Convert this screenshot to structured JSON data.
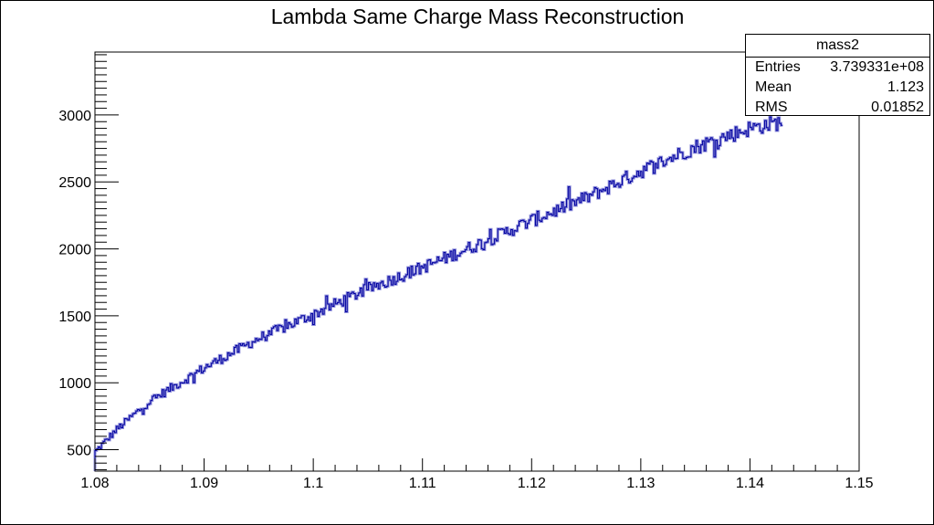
{
  "chart_data": {
    "type": "line",
    "title": "Lambda Same Charge Mass Reconstruction",
    "xlabel": "",
    "ylabel": "",
    "xlim": [
      1.08,
      1.15
    ],
    "ylim": [
      340,
      3470
    ],
    "x_ticks": [
      "1.08",
      "1.09",
      "1.1",
      "1.11",
      "1.12",
      "1.13",
      "1.14",
      "1.15"
    ],
    "y_ticks": [
      "500",
      "1000",
      "1500",
      "2000",
      "2500",
      "3000"
    ],
    "grid": false,
    "histogram_range": [
      1.08,
      1.143
    ],
    "line_color": "#0000a0",
    "fill_color": "#8888d8",
    "series": [
      {
        "x": [
          1.08,
          1.082,
          1.085,
          1.09,
          1.095,
          1.1,
          1.105,
          1.11,
          1.115,
          1.12,
          1.125,
          1.13,
          1.135,
          1.14,
          1.143
        ],
        "values": [
          480,
          650,
          860,
          1110,
          1330,
          1510,
          1700,
          1860,
          2030,
          2210,
          2380,
          2580,
          2760,
          2900,
          2950
        ]
      }
    ]
  },
  "stats_box": {
    "name": "mass2",
    "rows": [
      {
        "label": "Entries",
        "value": "3.739331e+08"
      },
      {
        "label": "Mean",
        "value": "1.123"
      },
      {
        "label": "RMS",
        "value": "0.01852"
      }
    ]
  }
}
